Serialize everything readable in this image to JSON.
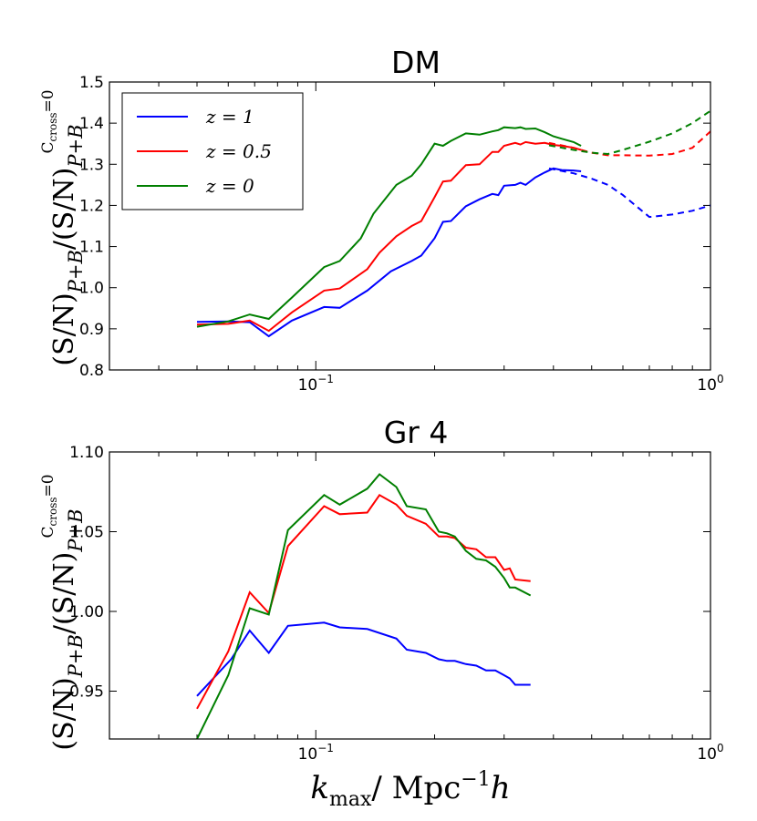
{
  "chart_data": [
    {
      "type": "line",
      "title": "DM",
      "x_scale": "log",
      "xlim": [
        0.03,
        1.0
      ],
      "ylim": [
        0.8,
        1.5
      ],
      "y_ticks": [
        "0.8",
        "0.9",
        "1.0",
        "1.1",
        "1.2",
        "1.3",
        "1.4",
        "1.5"
      ],
      "x_ticks": [
        {
          "base": "10",
          "exp": "−1"
        },
        {
          "base": "10",
          "exp": "0"
        }
      ],
      "ylabel": "(S/N)_{P+B}/(S/N)^{C_cross=0}_{P+B}",
      "legend": {
        "position": "top-left",
        "entries": [
          "z = 1",
          "z = 0.5",
          "z = 0"
        ]
      },
      "series": [
        {
          "name": "z = 1",
          "color": "#0000ff",
          "solid": [
            [
              0.05,
              0.917
            ],
            [
              0.06,
              0.918
            ],
            [
              0.068,
              0.916
            ],
            [
              0.076,
              0.882
            ],
            [
              0.087,
              0.92
            ],
            [
              0.105,
              0.953
            ],
            [
              0.115,
              0.951
            ],
            [
              0.135,
              0.993
            ],
            [
              0.155,
              1.04
            ],
            [
              0.175,
              1.065
            ],
            [
              0.185,
              1.078
            ],
            [
              0.2,
              1.12
            ],
            [
              0.21,
              1.16
            ],
            [
              0.22,
              1.162
            ],
            [
              0.24,
              1.198
            ],
            [
              0.26,
              1.215
            ],
            [
              0.28,
              1.228
            ],
            [
              0.29,
              1.225
            ],
            [
              0.3,
              1.248
            ],
            [
              0.32,
              1.25
            ],
            [
              0.33,
              1.255
            ],
            [
              0.34,
              1.25
            ],
            [
              0.36,
              1.268
            ],
            [
              0.38,
              1.28
            ],
            [
              0.4,
              1.29
            ],
            [
              0.42,
              1.286
            ],
            [
              0.45,
              1.285
            ],
            [
              0.47,
              1.283
            ]
          ],
          "dashed": [
            [
              0.39,
              1.29
            ],
            [
              0.45,
              1.278
            ],
            [
              0.5,
              1.265
            ],
            [
              0.55,
              1.25
            ],
            [
              0.6,
              1.225
            ],
            [
              0.7,
              1.172
            ],
            [
              0.8,
              1.178
            ],
            [
              0.9,
              1.187
            ],
            [
              1.0,
              1.2
            ]
          ]
        },
        {
          "name": "z = 0.5",
          "color": "#ff0000",
          "solid": [
            [
              0.05,
              0.91
            ],
            [
              0.06,
              0.912
            ],
            [
              0.068,
              0.92
            ],
            [
              0.076,
              0.895
            ],
            [
              0.087,
              0.94
            ],
            [
              0.105,
              0.993
            ],
            [
              0.115,
              0.998
            ],
            [
              0.135,
              1.045
            ],
            [
              0.145,
              1.085
            ],
            [
              0.16,
              1.125
            ],
            [
              0.175,
              1.15
            ],
            [
              0.185,
              1.162
            ],
            [
              0.2,
              1.22
            ],
            [
              0.21,
              1.258
            ],
            [
              0.22,
              1.26
            ],
            [
              0.24,
              1.298
            ],
            [
              0.26,
              1.3
            ],
            [
              0.28,
              1.33
            ],
            [
              0.29,
              1.33
            ],
            [
              0.3,
              1.345
            ],
            [
              0.32,
              1.352
            ],
            [
              0.33,
              1.348
            ],
            [
              0.34,
              1.354
            ],
            [
              0.36,
              1.35
            ],
            [
              0.38,
              1.352
            ],
            [
              0.4,
              1.347
            ],
            [
              0.42,
              1.345
            ],
            [
              0.45,
              1.34
            ],
            [
              0.47,
              1.335
            ]
          ],
          "dashed": [
            [
              0.39,
              1.352
            ],
            [
              0.45,
              1.34
            ],
            [
              0.5,
              1.328
            ],
            [
              0.55,
              1.322
            ],
            [
              0.6,
              1.322
            ],
            [
              0.7,
              1.321
            ],
            [
              0.8,
              1.325
            ],
            [
              0.9,
              1.34
            ],
            [
              1.0,
              1.38
            ]
          ]
        },
        {
          "name": "z = 0",
          "color": "#007f00",
          "solid": [
            [
              0.05,
              0.905
            ],
            [
              0.06,
              0.918
            ],
            [
              0.068,
              0.935
            ],
            [
              0.076,
              0.924
            ],
            [
              0.087,
              0.976
            ],
            [
              0.105,
              1.05
            ],
            [
              0.115,
              1.065
            ],
            [
              0.13,
              1.12
            ],
            [
              0.14,
              1.18
            ],
            [
              0.16,
              1.25
            ],
            [
              0.175,
              1.272
            ],
            [
              0.185,
              1.3
            ],
            [
              0.2,
              1.35
            ],
            [
              0.21,
              1.345
            ],
            [
              0.22,
              1.357
            ],
            [
              0.24,
              1.375
            ],
            [
              0.26,
              1.372
            ],
            [
              0.28,
              1.38
            ],
            [
              0.29,
              1.383
            ],
            [
              0.3,
              1.39
            ],
            [
              0.32,
              1.388
            ],
            [
              0.33,
              1.39
            ],
            [
              0.34,
              1.386
            ],
            [
              0.36,
              1.387
            ],
            [
              0.38,
              1.378
            ],
            [
              0.4,
              1.368
            ],
            [
              0.42,
              1.362
            ],
            [
              0.45,
              1.354
            ],
            [
              0.47,
              1.345
            ]
          ],
          "dashed": [
            [
              0.39,
              1.346
            ],
            [
              0.45,
              1.335
            ],
            [
              0.5,
              1.328
            ],
            [
              0.55,
              1.325
            ],
            [
              0.6,
              1.335
            ],
            [
              0.7,
              1.355
            ],
            [
              0.8,
              1.375
            ],
            [
              0.9,
              1.4
            ],
            [
              1.0,
              1.43
            ]
          ]
        }
      ]
    },
    {
      "type": "line",
      "title": "Gr 4",
      "x_scale": "log",
      "xlim": [
        0.03,
        1.0
      ],
      "ylim": [
        0.92,
        1.1
      ],
      "y_ticks": [
        "0.95",
        "1.00",
        "1.05",
        "1.10"
      ],
      "x_ticks": [
        {
          "base": "10",
          "exp": "−1"
        },
        {
          "base": "10",
          "exp": "0"
        }
      ],
      "xlabel": "k_max / Mpc^{-1} h",
      "ylabel": "(S/N)_{P+B}/(S/N)^{C_cross=0}_{P+B}",
      "series": [
        {
          "name": "z = 1",
          "color": "#0000ff",
          "solid": [
            [
              0.05,
              0.947
            ],
            [
              0.061,
              0.97
            ],
            [
              0.068,
              0.988
            ],
            [
              0.076,
              0.974
            ],
            [
              0.085,
              0.991
            ],
            [
              0.105,
              0.993
            ],
            [
              0.115,
              0.99
            ],
            [
              0.135,
              0.989
            ],
            [
              0.16,
              0.983
            ],
            [
              0.17,
              0.976
            ],
            [
              0.19,
              0.974
            ],
            [
              0.205,
              0.97
            ],
            [
              0.215,
              0.969
            ],
            [
              0.225,
              0.969
            ],
            [
              0.24,
              0.967
            ],
            [
              0.255,
              0.966
            ],
            [
              0.27,
              0.963
            ],
            [
              0.285,
              0.963
            ],
            [
              0.3,
              0.96
            ],
            [
              0.31,
              0.958
            ],
            [
              0.32,
              0.954
            ],
            [
              0.35,
              0.954
            ]
          ]
        },
        {
          "name": "z = 0.5",
          "color": "#ff0000",
          "solid": [
            [
              0.05,
              0.939
            ],
            [
              0.06,
              0.975
            ],
            [
              0.068,
              1.012
            ],
            [
              0.076,
              0.999
            ],
            [
              0.085,
              1.041
            ],
            [
              0.105,
              1.066
            ],
            [
              0.115,
              1.061
            ],
            [
              0.135,
              1.062
            ],
            [
              0.145,
              1.073
            ],
            [
              0.16,
              1.067
            ],
            [
              0.17,
              1.06
            ],
            [
              0.19,
              1.055
            ],
            [
              0.205,
              1.047
            ],
            [
              0.215,
              1.047
            ],
            [
              0.225,
              1.046
            ],
            [
              0.24,
              1.04
            ],
            [
              0.255,
              1.039
            ],
            [
              0.27,
              1.034
            ],
            [
              0.285,
              1.034
            ],
            [
              0.3,
              1.026
            ],
            [
              0.31,
              1.027
            ],
            [
              0.32,
              1.02
            ],
            [
              0.35,
              1.019
            ]
          ]
        },
        {
          "name": "z = 0",
          "color": "#007f00",
          "solid": [
            [
              0.05,
              0.92
            ],
            [
              0.06,
              0.96
            ],
            [
              0.068,
              1.002
            ],
            [
              0.076,
              0.998
            ],
            [
              0.085,
              1.051
            ],
            [
              0.105,
              1.073
            ],
            [
              0.115,
              1.067
            ],
            [
              0.135,
              1.077
            ],
            [
              0.145,
              1.086
            ],
            [
              0.16,
              1.078
            ],
            [
              0.17,
              1.066
            ],
            [
              0.19,
              1.064
            ],
            [
              0.205,
              1.05
            ],
            [
              0.215,
              1.049
            ],
            [
              0.225,
              1.047
            ],
            [
              0.24,
              1.038
            ],
            [
              0.255,
              1.033
            ],
            [
              0.27,
              1.032
            ],
            [
              0.285,
              1.028
            ],
            [
              0.3,
              1.021
            ],
            [
              0.31,
              1.015
            ],
            [
              0.32,
              1.015
            ],
            [
              0.35,
              1.01
            ]
          ]
        }
      ]
    }
  ]
}
